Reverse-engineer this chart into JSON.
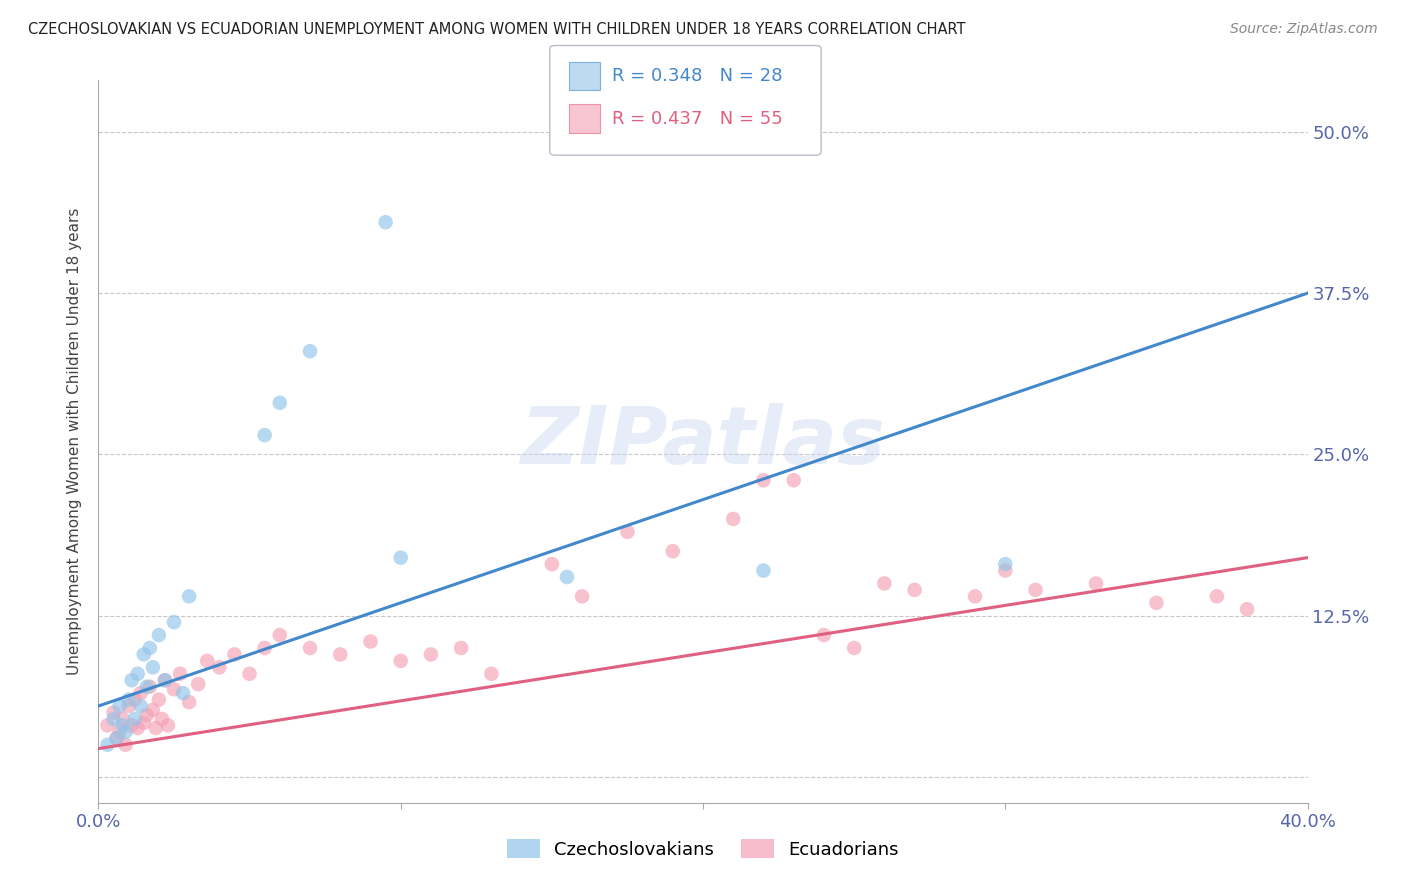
{
  "title": "CZECHOSLOVAKIAN VS ECUADORIAN UNEMPLOYMENT AMONG WOMEN WITH CHILDREN UNDER 18 YEARS CORRELATION CHART",
  "source": "Source: ZipAtlas.com",
  "ylabel": "Unemployment Among Women with Children Under 18 years",
  "xlim": [
    0.0,
    0.4
  ],
  "ylim": [
    -0.02,
    0.54
  ],
  "xticks": [
    0.0,
    0.1,
    0.2,
    0.3,
    0.4
  ],
  "xticklabels": [
    "0.0%",
    "",
    "",
    "",
    "40.0%"
  ],
  "ytick_positions": [
    0.0,
    0.125,
    0.25,
    0.375,
    0.5
  ],
  "ytick_labels_right": [
    "",
    "12.5%",
    "25.0%",
    "37.5%",
    "50.0%"
  ],
  "background_color": "#ffffff",
  "grid_color": "#c8c8c8",
  "watermark": "ZIPatlas",
  "czech_color": "#90c4e8",
  "ecuador_color": "#f4a0b5",
  "czech_line_color": "#4488cc",
  "ecuador_line_color": "#e06080",
  "czech_R": 0.348,
  "czech_N": 28,
  "ecuador_R": 0.437,
  "ecuador_N": 55,
  "czech_line_x0": 0.0,
  "czech_line_y0": 0.055,
  "czech_line_x1": 0.4,
  "czech_line_y1": 0.375,
  "ecuador_line_x0": 0.0,
  "ecuador_line_y0": 0.022,
  "ecuador_line_x1": 0.4,
  "ecuador_line_y1": 0.17,
  "czech_x": [
    0.003,
    0.005,
    0.006,
    0.007,
    0.008,
    0.009,
    0.01,
    0.011,
    0.012,
    0.013,
    0.014,
    0.015,
    0.016,
    0.017,
    0.018,
    0.02,
    0.022,
    0.025,
    0.028,
    0.03,
    0.055,
    0.06,
    0.07,
    0.095,
    0.1,
    0.155,
    0.22,
    0.3
  ],
  "czech_y": [
    0.025,
    0.045,
    0.03,
    0.055,
    0.04,
    0.035,
    0.06,
    0.075,
    0.045,
    0.08,
    0.055,
    0.095,
    0.07,
    0.1,
    0.085,
    0.11,
    0.075,
    0.12,
    0.065,
    0.14,
    0.265,
    0.29,
    0.33,
    0.43,
    0.17,
    0.155,
    0.16,
    0.165
  ],
  "ecuador_x": [
    0.003,
    0.005,
    0.006,
    0.007,
    0.008,
    0.009,
    0.01,
    0.011,
    0.012,
    0.013,
    0.014,
    0.015,
    0.016,
    0.017,
    0.018,
    0.019,
    0.02,
    0.021,
    0.022,
    0.023,
    0.025,
    0.027,
    0.03,
    0.033,
    0.036,
    0.04,
    0.045,
    0.05,
    0.055,
    0.06,
    0.07,
    0.08,
    0.09,
    0.1,
    0.11,
    0.12,
    0.13,
    0.15,
    0.16,
    0.175,
    0.19,
    0.21,
    0.23,
    0.25,
    0.27,
    0.29,
    0.31,
    0.33,
    0.35,
    0.37,
    0.22,
    0.24,
    0.26,
    0.3,
    0.38
  ],
  "ecuador_y": [
    0.04,
    0.05,
    0.03,
    0.035,
    0.045,
    0.025,
    0.055,
    0.04,
    0.06,
    0.038,
    0.065,
    0.042,
    0.048,
    0.07,
    0.052,
    0.038,
    0.06,
    0.045,
    0.075,
    0.04,
    0.068,
    0.08,
    0.058,
    0.072,
    0.09,
    0.085,
    0.095,
    0.08,
    0.1,
    0.11,
    0.1,
    0.095,
    0.105,
    0.09,
    0.095,
    0.1,
    0.08,
    0.165,
    0.14,
    0.19,
    0.175,
    0.2,
    0.23,
    0.1,
    0.145,
    0.14,
    0.145,
    0.15,
    0.135,
    0.14,
    0.23,
    0.11,
    0.15,
    0.16,
    0.13
  ]
}
